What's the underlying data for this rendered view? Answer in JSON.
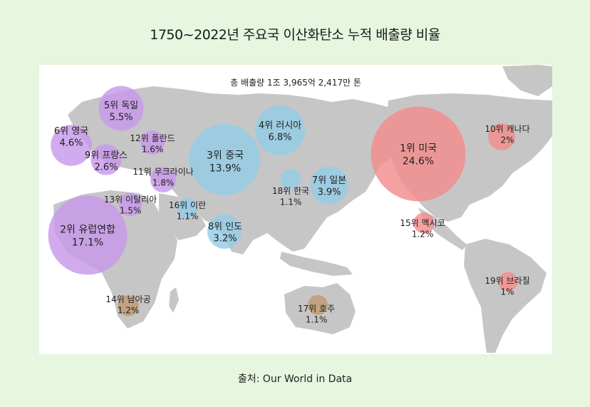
{
  "title": "1750~2022년 주요국 이산화탄소 누적 배출량 비율",
  "total_label": "총 배출량 1조 3,965억 2,417만 톤",
  "source": "출처: Our World in Data",
  "colors": {
    "background": "#e6f6df",
    "map": "#c6c6c6",
    "europe": "#c898ea",
    "asia": "#94cde6",
    "americas": "#f48c8c",
    "africa_oceania": "#c09a72"
  },
  "chart_data": {
    "type": "bubble-map",
    "title": "1750~2022년 주요국 이산화탄소 누적 배출량 비율",
    "subtitle": "총 배출량 1조 3,965억 2,417만 톤",
    "points": [
      {
        "rank": "1위",
        "name": "미국",
        "value": 24.6,
        "label": "24.6%",
        "group": "americas"
      },
      {
        "rank": "2위",
        "name": "유럽연합",
        "value": 17.1,
        "label": "17.1%",
        "group": "europe"
      },
      {
        "rank": "3위",
        "name": "중국",
        "value": 13.9,
        "label": "13.9%",
        "group": "asia"
      },
      {
        "rank": "4위",
        "name": "러시아",
        "value": 6.8,
        "label": "6.8%",
        "group": "asia"
      },
      {
        "rank": "5위",
        "name": "독일",
        "value": 5.5,
        "label": "5.5%",
        "group": "europe"
      },
      {
        "rank": "6위",
        "name": "영국",
        "value": 4.6,
        "label": "4.6%",
        "group": "europe"
      },
      {
        "rank": "7위",
        "name": "일본",
        "value": 3.9,
        "label": "3.9%",
        "group": "asia"
      },
      {
        "rank": "8위",
        "name": "인도",
        "value": 3.2,
        "label": "3.2%",
        "group": "asia"
      },
      {
        "rank": "9위",
        "name": "프랑스",
        "value": 2.6,
        "label": "2.6%",
        "group": "europe"
      },
      {
        "rank": "10위",
        "name": "캐나다",
        "value": 2.0,
        "label": "2%",
        "group": "americas"
      },
      {
        "rank": "11위",
        "name": "우크라이나",
        "value": 1.8,
        "label": "1.8%",
        "group": "europe"
      },
      {
        "rank": "12위",
        "name": "폴란드",
        "value": 1.6,
        "label": "1.6%",
        "group": "europe"
      },
      {
        "rank": "13위",
        "name": "이탈리아",
        "value": 1.5,
        "label": "1.5%",
        "group": "europe"
      },
      {
        "rank": "14위",
        "name": "남아공",
        "value": 1.2,
        "label": "1.2%",
        "group": "africa_oceania"
      },
      {
        "rank": "15위",
        "name": "멕시코",
        "value": 1.2,
        "label": "1.2%",
        "group": "americas"
      },
      {
        "rank": "16위",
        "name": "이란",
        "value": 1.1,
        "label": "1.1%",
        "group": "asia"
      },
      {
        "rank": "17위",
        "name": "호주",
        "value": 1.1,
        "label": "1.1%",
        "group": "africa_oceania"
      },
      {
        "rank": "18위",
        "name": "한국",
        "value": 1.1,
        "label": "1.1%",
        "group": "asia"
      },
      {
        "rank": "19위",
        "name": "브라질",
        "value": 1.0,
        "label": "1%",
        "group": "americas"
      }
    ]
  }
}
